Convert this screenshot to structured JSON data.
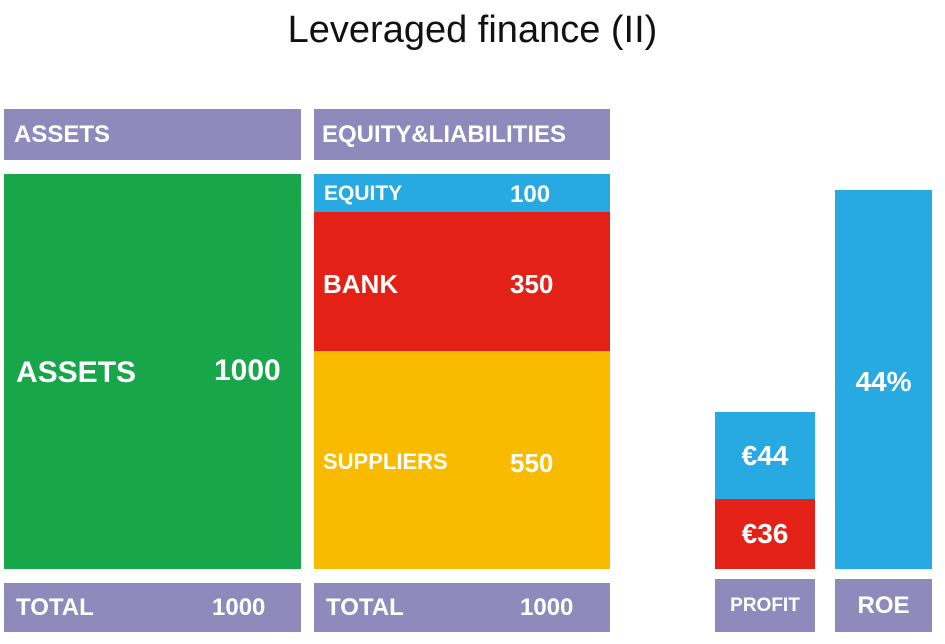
{
  "title": "Leveraged finance (II)",
  "headers": {
    "assets": "ASSETS",
    "equity_liabilities": "EQUITY&LIABILITIES"
  },
  "assets_block": {
    "label": "ASSETS",
    "value": "1000"
  },
  "liabilities": [
    {
      "label": "EQUITY",
      "value": "100"
    },
    {
      "label": "BANK",
      "value": "350"
    },
    {
      "label": "SUPPLIERS",
      "value": "550"
    }
  ],
  "totals": {
    "assets": {
      "label": "TOTAL",
      "value": "1000"
    },
    "equity_liabilities": {
      "label": "TOTAL",
      "value": "1000"
    }
  },
  "profit": {
    "upper": "€44",
    "lower": "€36",
    "label": "PROFIT"
  },
  "roe": {
    "value": "44%",
    "label": "ROE"
  },
  "colors": {
    "header": "#8f89bc",
    "assets": "#18a64a",
    "equity": "#27a9e1",
    "bank": "#e42116",
    "suppliers": "#f9bb00"
  }
}
